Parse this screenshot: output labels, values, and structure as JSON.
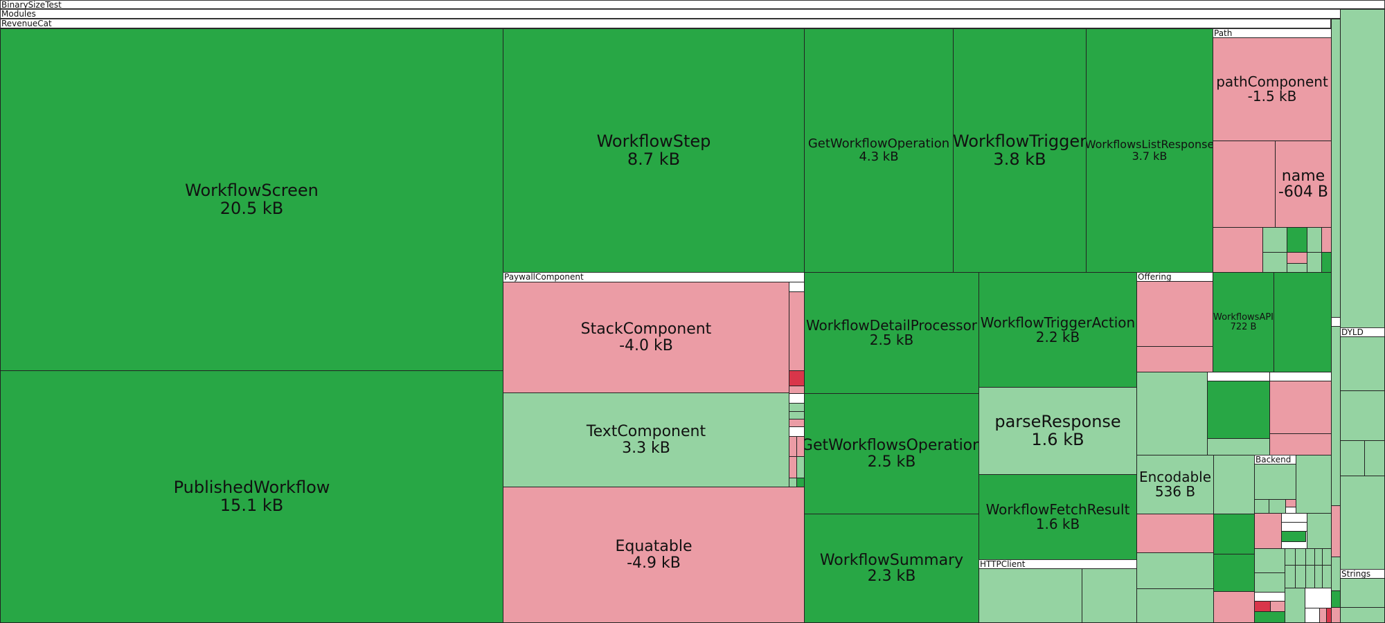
{
  "headers": {
    "root": "BinarySizeTest",
    "modules": "Modules",
    "revenuecat": "RevenueCat",
    "paywall_component": "PaywallComponent",
    "path": "Path",
    "offering": "Offering",
    "backend": "Backend",
    "http_client": "HTTPClient",
    "dyld": "DYLD",
    "strings": "Strings"
  },
  "nodes": [
    {
      "id": "workflow-screen",
      "name": "WorkflowScreen",
      "size": "20.5 kB",
      "status": "increase"
    },
    {
      "id": "published-workflow",
      "name": "PublishedWorkflow",
      "size": "15.1 kB",
      "status": "increase"
    },
    {
      "id": "workflow-step",
      "name": "WorkflowStep",
      "size": "8.7 kB",
      "status": "increase"
    },
    {
      "id": "get-workflow-operation",
      "name": "GetWorkflowOperation",
      "size": "4.3 kB",
      "status": "increase"
    },
    {
      "id": "workflow-trigger",
      "name": "WorkflowTrigger",
      "size": "3.8 kB",
      "status": "increase"
    },
    {
      "id": "workflows-list-response",
      "name": "WorkflowsListResponse",
      "size": "3.7 kB",
      "status": "increase"
    },
    {
      "id": "path-component",
      "name": "pathComponent",
      "size": "-1.5 kB",
      "status": "decrease"
    },
    {
      "id": "name",
      "name": "name",
      "size": "-604 B",
      "status": "decrease"
    },
    {
      "id": "stack-component",
      "name": "StackComponent",
      "size": "-4.0 kB",
      "status": "decrease"
    },
    {
      "id": "text-component",
      "name": "TextComponent",
      "size": "3.3 kB",
      "status": "increase"
    },
    {
      "id": "equatable",
      "name": "Equatable",
      "size": "-4.9 kB",
      "status": "decrease"
    },
    {
      "id": "workflow-detail-processor",
      "name": "WorkflowDetailProcessor",
      "size": "2.5 kB",
      "status": "increase"
    },
    {
      "id": "workflow-trigger-action",
      "name": "WorkflowTriggerAction",
      "size": "2.2 kB",
      "status": "increase"
    },
    {
      "id": "workflows-api",
      "name": "WorkflowsAPI",
      "size": "722 B",
      "status": "increase"
    },
    {
      "id": "parse-response",
      "name": "parseResponse",
      "size": "1.6 kB",
      "status": "increase"
    },
    {
      "id": "get-workflows-operation",
      "name": "GetWorkflowsOperation",
      "size": "2.5 kB",
      "status": "increase"
    },
    {
      "id": "encodable",
      "name": "Encodable",
      "size": "536 B",
      "status": "increase"
    },
    {
      "id": "workflow-fetch-result",
      "name": "WorkflowFetchResult",
      "size": "1.6 kB",
      "status": "increase"
    },
    {
      "id": "workflow-summary",
      "name": "WorkflowSummary",
      "size": "2.3 kB",
      "status": "increase"
    }
  ],
  "colors": {
    "increase": "#28a745",
    "small_increase": "#95d3a2",
    "decrease": "#eb9ca5",
    "large_decrease": "#d9364a"
  }
}
